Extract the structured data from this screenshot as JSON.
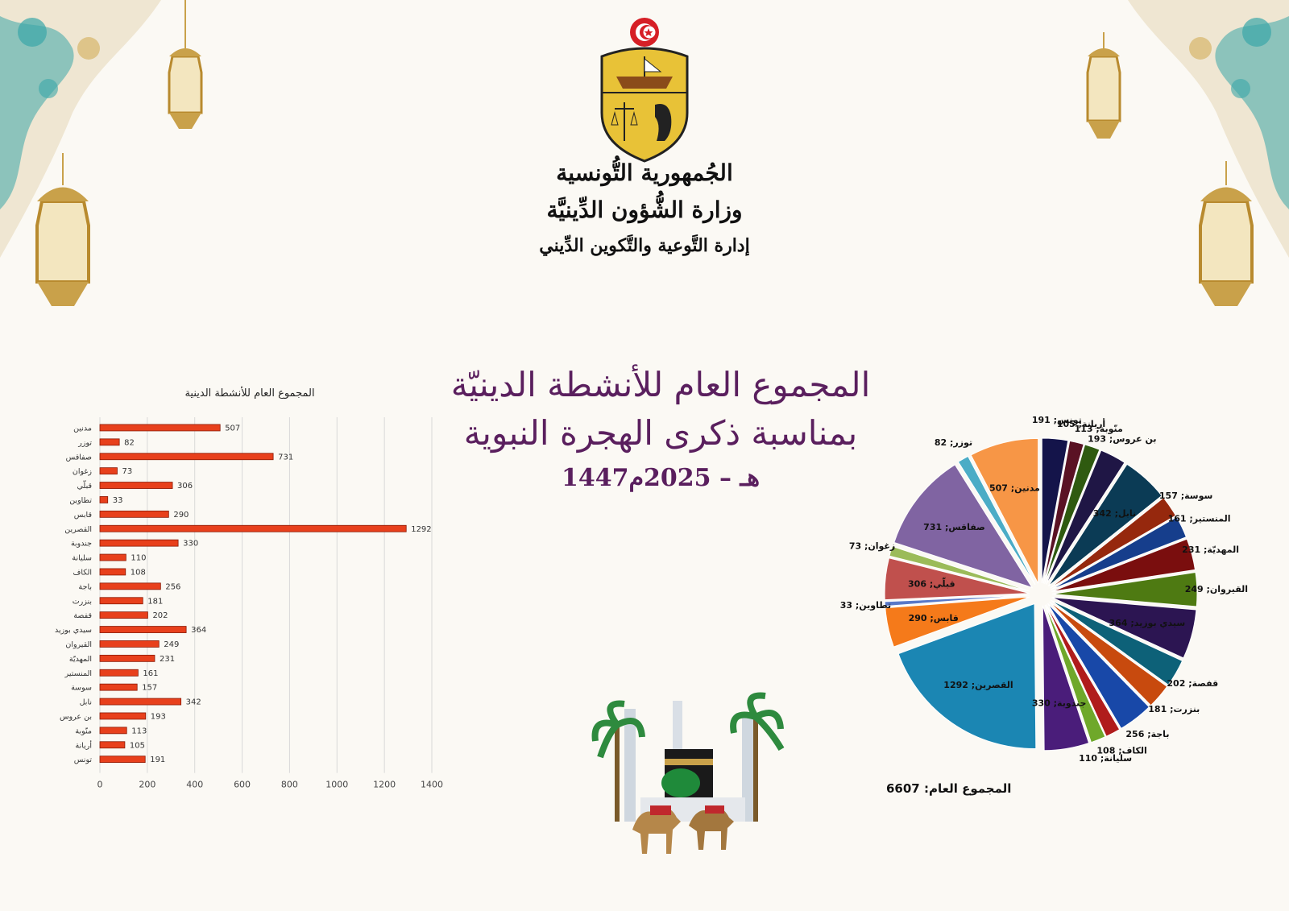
{
  "header": {
    "line1": "الجُمهورية التُّونسية",
    "line2": "وزارة الشُّؤون الدِّينيَّة",
    "line3": "إدارة التَّوعية والتَّكوين الدِّيني"
  },
  "title": {
    "line1": "المجموع العام للأنشطة الدينيّة",
    "line2": "بمناسبة ذكرى الهجرة النبوية",
    "line3": "1447هـ – 2025م"
  },
  "colors": {
    "bar_fill": "#e8401c",
    "title": "#5a1f5e",
    "decor_teal": "#3aa6a8",
    "decor_gold": "#d7b56a"
  },
  "icons": [
    "tunisia-coat-of-arms-icon",
    "lantern-icon",
    "kaaba-icon",
    "palm-tree-icon",
    "camel-icon"
  ],
  "chart_data": [
    {
      "type": "bar",
      "orientation": "horizontal",
      "title": "المجموع العام للأنشطة الدينية",
      "categories": [
        "مدنين",
        "توزر",
        "صفاقس",
        "زغوان",
        "قبلّي",
        "تطاوين",
        "قابس",
        "القصرين",
        "جندوبة",
        "سليانة",
        "الكاف",
        "باجة",
        "بنزرت",
        "قفصة",
        "سيدي بوزيد",
        "القيروان",
        "المهديّة",
        "المنستير",
        "سوسة",
        "نابل",
        "بن عروس",
        "منّوبة",
        "أريانة",
        "تونس"
      ],
      "values": [
        507,
        82,
        731,
        73,
        306,
        33,
        290,
        1292,
        330,
        110,
        108,
        256,
        181,
        202,
        364,
        249,
        231,
        161,
        157,
        342,
        193,
        113,
        105,
        191
      ],
      "xlim": [
        0,
        1400
      ],
      "xticks": [
        0,
        200,
        400,
        600,
        800,
        1000,
        1200,
        1400
      ],
      "grid": true,
      "data_labels": true
    },
    {
      "type": "pie",
      "exploded": true,
      "total_label": "المجموع العام:",
      "total_value": "6607",
      "slices": [
        {
          "label": "تونس",
          "value": 191,
          "color": "#14144a",
          "text": "تونس; 191"
        },
        {
          "label": "أريانة",
          "value": 105,
          "color": "#5a1224",
          "text": "أريانة; 105"
        },
        {
          "label": "منّوبة",
          "value": 113,
          "color": "#2f5a10",
          "text": "منّوبة; 113"
        },
        {
          "label": "بن عروس",
          "value": 193,
          "color": "#1f1645",
          "text": "بن عروس; 193"
        },
        {
          "label": "نابل",
          "value": 342,
          "color": "#0b3b55",
          "text": "نابل; 342"
        },
        {
          "label": "سوسة",
          "value": 157,
          "color": "#96280d",
          "text": "سوسة; 157"
        },
        {
          "label": "المنستير",
          "value": 161,
          "color": "#163e8c",
          "text": "المنستير; 161"
        },
        {
          "label": "المهديّة",
          "value": 231,
          "color": "#7a0e0e",
          "text": "المهديّة; 231"
        },
        {
          "label": "القيروان",
          "value": 249,
          "color": "#4e7a12",
          "text": "القيروان; 249"
        },
        {
          "label": "سيدي بوزيد",
          "value": 364,
          "color": "#2c1552",
          "text": "سيدي بوزيد; 364"
        },
        {
          "label": "قفصة",
          "value": 202,
          "color": "#0d6178",
          "text": "قفصة; 202"
        },
        {
          "label": "بنزرت",
          "value": 181,
          "color": "#c84a0e",
          "text": "بنزرت; 181"
        },
        {
          "label": "باجة",
          "value": 256,
          "color": "#1848a8",
          "text": "باجة; 256"
        },
        {
          "label": "الكاف",
          "value": 108,
          "color": "#b01c1c",
          "text": "الكاف; 108"
        },
        {
          "label": "سليانة",
          "value": 110,
          "color": "#6fa82a",
          "text": "سليانة; 110"
        },
        {
          "label": "جندوبة",
          "value": 330,
          "color": "#4a1d7a",
          "text": "جندوبة; 330"
        },
        {
          "label": "القصرين",
          "value": 1292,
          "color": "#1b86b3",
          "text": "القصرين; 1292"
        },
        {
          "label": "قابس",
          "value": 290,
          "color": "#f57a1a",
          "text": "قابس; 290"
        },
        {
          "label": "تطاوين",
          "value": 33,
          "color": "#5878c8",
          "text": "تطاوين; 33"
        },
        {
          "label": "قبلّي",
          "value": 306,
          "color": "#c0504d",
          "text": "قبلّي; 306"
        },
        {
          "label": "زغوان",
          "value": 73,
          "color": "#9bbb59",
          "text": "زغوان; 73"
        },
        {
          "label": "صفاقس",
          "value": 731,
          "color": "#8064a2",
          "text": "صفاقس; 731"
        },
        {
          "label": "توزر",
          "value": 82,
          "color": "#4bacc6",
          "text": "توزر; 82"
        },
        {
          "label": "مدنين",
          "value": 507,
          "color": "#f79646",
          "text": "مدنين; 507"
        }
      ]
    }
  ]
}
